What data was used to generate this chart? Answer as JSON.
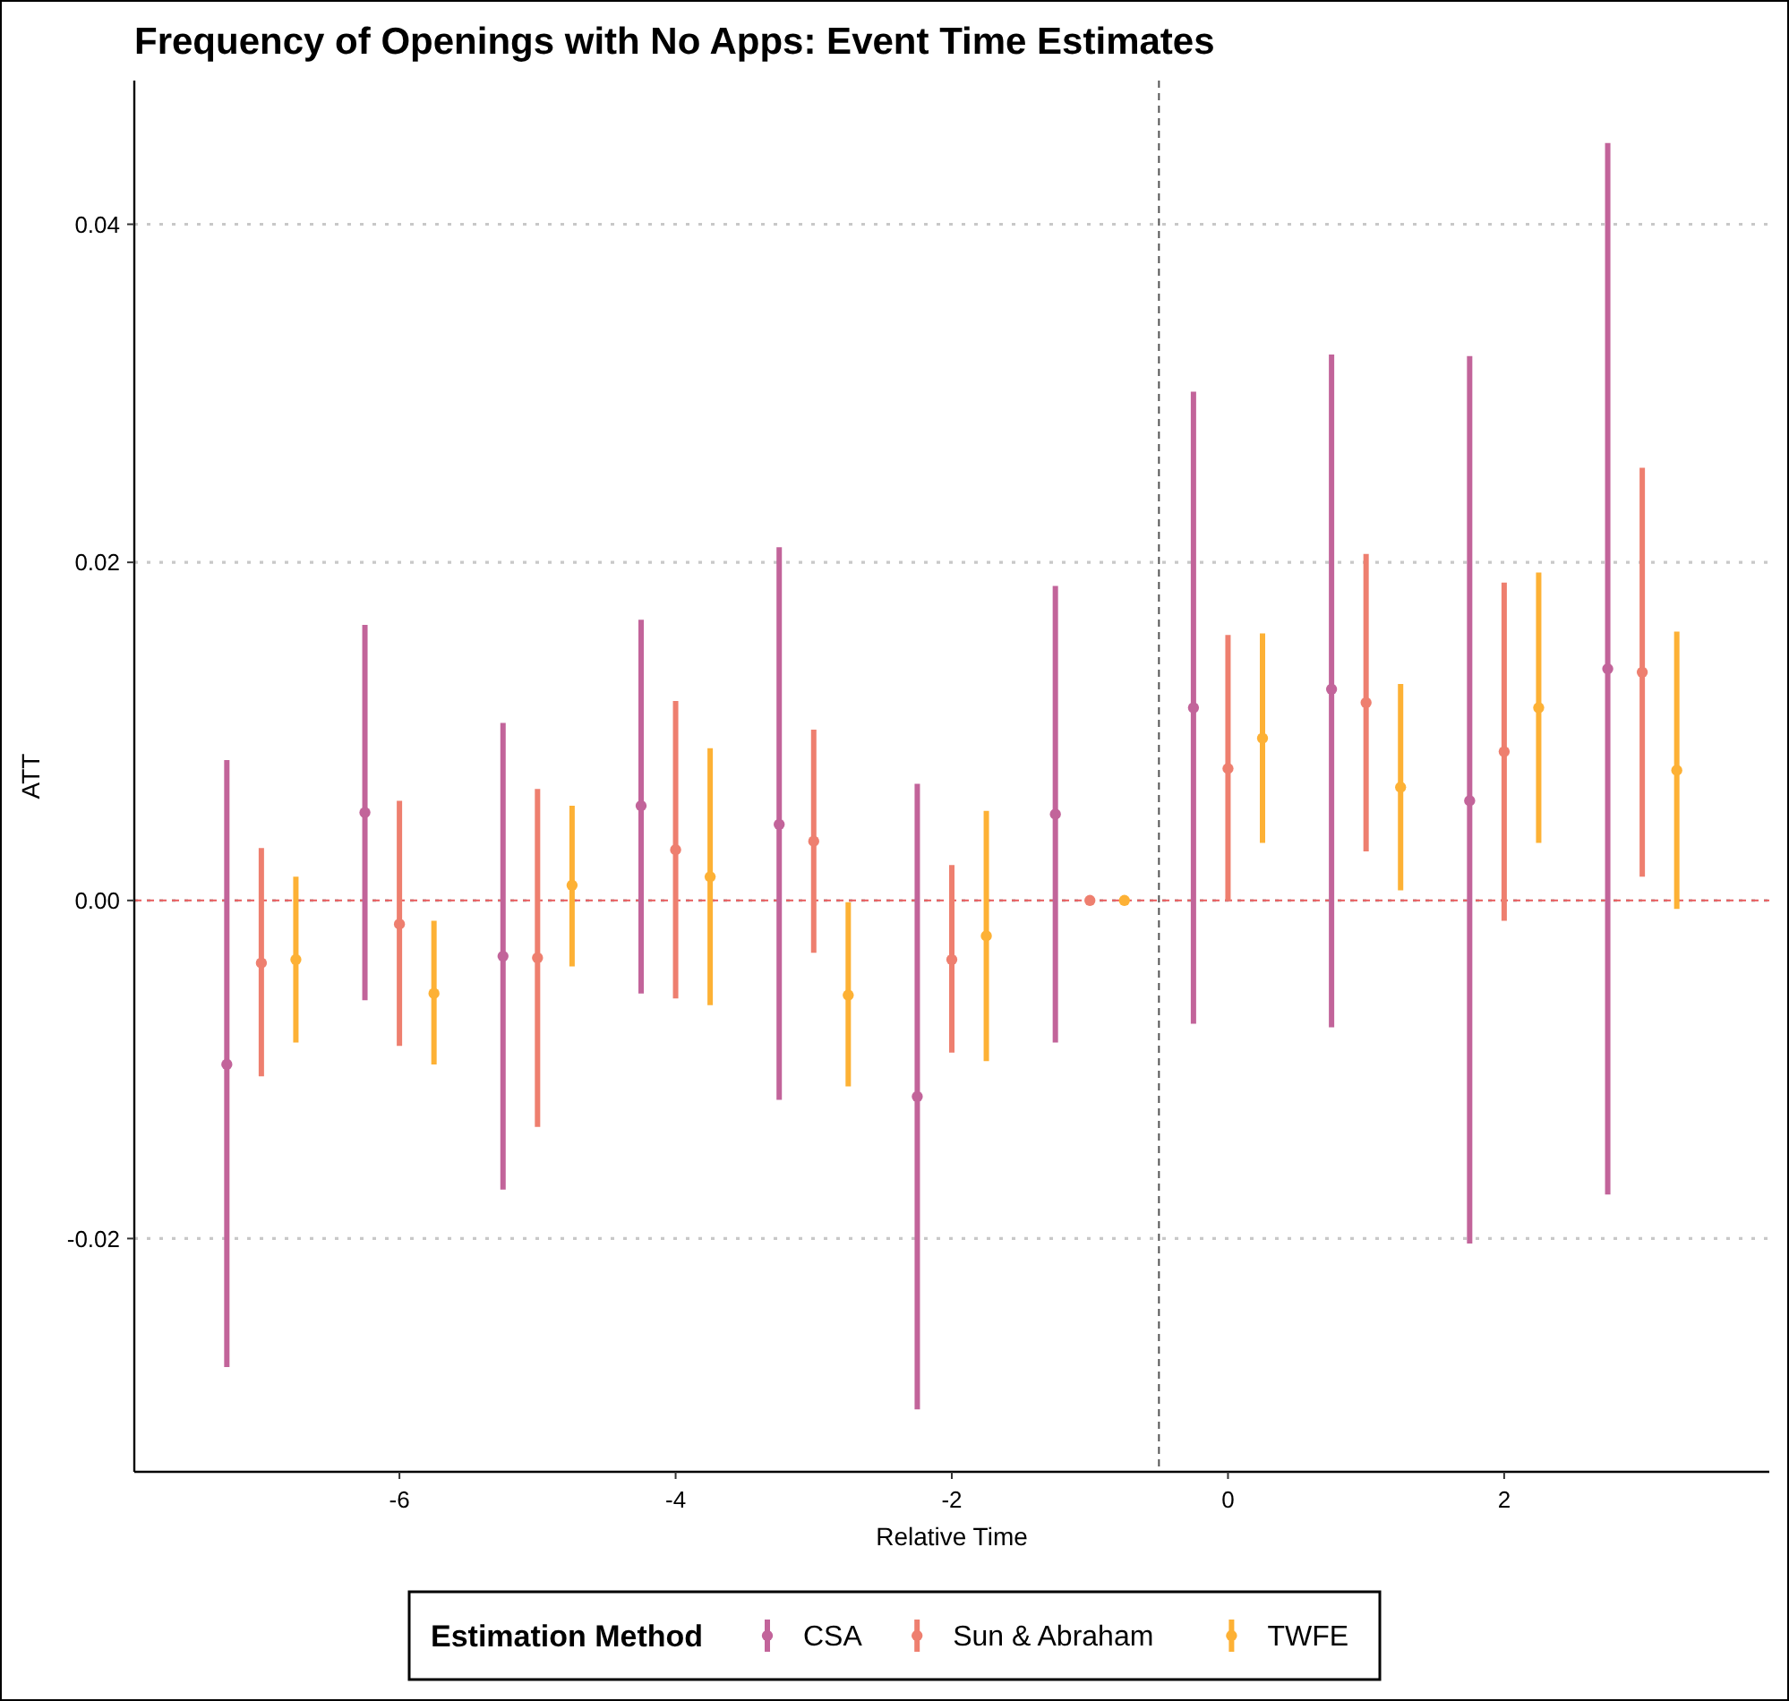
{
  "chart_data": {
    "type": "scatter",
    "title": "Frequency of Openings with No Apps: Event Time Estimates",
    "xlabel": "Relative Time",
    "ylabel": "ATT",
    "legend_title": "Estimation Method",
    "legend": "bottom",
    "grid": "y",
    "marker": "circle",
    "xlim": [
      -7.92,
      3.92
    ],
    "xticks": [
      -6,
      -4,
      -2,
      0,
      2
    ],
    "ylim": [
      -0.0338,
      0.0485
    ],
    "yticks": [
      -0.02,
      {
        "value": 0,
        "label": "0.00"
      },
      0.02,
      0.04
    ],
    "ref_lines": [
      {
        "axis": "y",
        "value": 0,
        "color": "#e8595b",
        "line_style": "dashed"
      },
      {
        "axis": "x",
        "value": -0.5,
        "color": "#555555",
        "line_style": "dashed"
      }
    ],
    "series": [
      {
        "name": "CSA",
        "color": "#c2649a",
        "x": [
          -7.25,
          -6.25,
          -5.25,
          -4.25,
          -3.25,
          -2.25,
          -1.25,
          -0.25,
          0.75,
          1.75,
          2.75
        ],
        "values": [
          -0.0097,
          0.0052,
          -0.0033,
          0.0056,
          0.0045,
          -0.0116,
          0.0051,
          0.0114,
          0.0125,
          0.0059,
          0.0137
        ],
        "errors": [
          [
            -0.0276,
            0.0083
          ],
          [
            -0.0059,
            0.0163
          ],
          [
            -0.0171,
            0.0105
          ],
          [
            -0.0055,
            0.0166
          ],
          [
            -0.0118,
            0.0209
          ],
          [
            -0.0301,
            0.0069
          ],
          [
            -0.0084,
            0.0186
          ],
          [
            -0.0073,
            0.0301
          ],
          [
            -0.0075,
            0.0323
          ],
          [
            -0.0203,
            0.0322
          ],
          [
            -0.0174,
            0.0448
          ]
        ]
      },
      {
        "name": "Sun & Abraham",
        "color": "#ee7f6f",
        "x": [
          -7,
          -6,
          -5,
          -4,
          -3,
          -2,
          -1,
          0,
          1,
          2,
          3
        ],
        "values": [
          -0.0037,
          -0.0014,
          -0.0034,
          0.003,
          0.0035,
          -0.0035,
          0,
          0.0078,
          0.0117,
          0.0088,
          0.0135
        ],
        "errors": [
          [
            -0.0104,
            0.0031
          ],
          [
            -0.0086,
            0.0059
          ],
          [
            -0.0134,
            0.0066
          ],
          [
            -0.0058,
            0.0118
          ],
          [
            -0.0031,
            0.0101
          ],
          [
            -0.009,
            0.0021
          ],
          null,
          [
            0,
            0.0157
          ],
          [
            0.0029,
            0.0205
          ],
          [
            -0.0012,
            0.0188
          ],
          [
            0.0014,
            0.0256
          ]
        ]
      },
      {
        "name": "TWFE",
        "color": "#fdb135",
        "x": [
          -6.75,
          -5.75,
          -4.75,
          -3.75,
          -2.75,
          -1.75,
          -0.75,
          0.25,
          1.25,
          2.25,
          3.25
        ],
        "values": [
          -0.0035,
          -0.0055,
          0.0009,
          0.0014,
          -0.0056,
          -0.0021,
          0,
          0.0096,
          0.0067,
          0.0114,
          0.0077
        ],
        "errors": [
          [
            -0.0084,
            0.0014
          ],
          [
            -0.0097,
            -0.0012
          ],
          [
            -0.0039,
            0.0056
          ],
          [
            -0.0062,
            0.009
          ],
          [
            -0.011,
            -0.0001
          ],
          [
            -0.0095,
            0.0053
          ],
          null,
          [
            0.0034,
            0.0158
          ],
          [
            0.0006,
            0.0128
          ],
          [
            0.0034,
            0.0194
          ],
          [
            -0.0005,
            0.0159
          ]
        ]
      }
    ]
  }
}
